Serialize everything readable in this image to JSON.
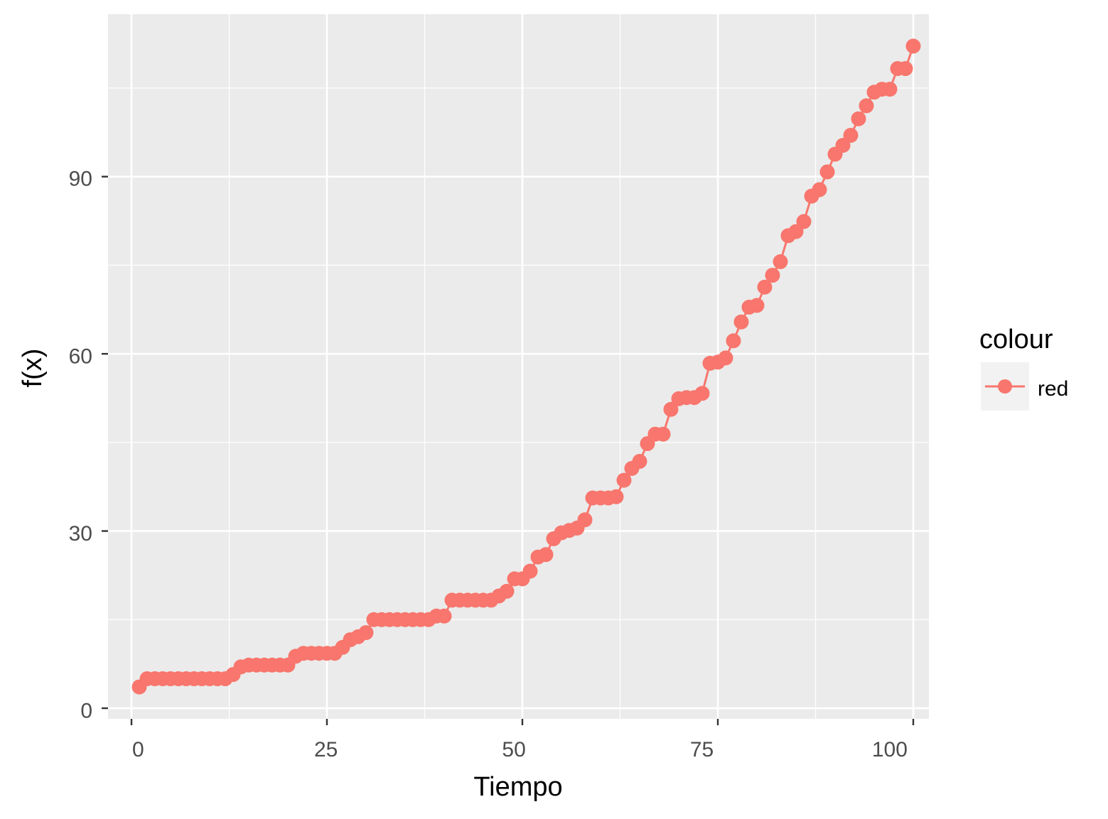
{
  "chart_data": {
    "type": "line",
    "xlabel": "Tiempo",
    "ylabel": "f(x)",
    "xlim": [
      -3,
      102
    ],
    "ylim": [
      -1.8,
      117.5
    ],
    "x_ticks": [
      0,
      25,
      50,
      75,
      100
    ],
    "y_ticks": [
      0,
      30,
      60,
      90
    ],
    "x_tick_labels": [
      "0",
      "25",
      "50",
      "75",
      "100"
    ],
    "y_tick_labels": [
      "0",
      "30",
      "60",
      "90"
    ],
    "grid": true,
    "legend": {
      "title": "colour",
      "position": "right",
      "entries": [
        "red"
      ]
    },
    "series": [
      {
        "name": "red",
        "color": "#F8766D",
        "x": [
          1,
          2,
          3,
          4,
          5,
          6,
          7,
          8,
          9,
          10,
          11,
          12,
          13,
          14,
          15,
          16,
          17,
          18,
          19,
          20,
          21,
          22,
          23,
          24,
          25,
          26,
          27,
          28,
          29,
          30,
          31,
          32,
          33,
          34,
          35,
          36,
          37,
          38,
          39,
          40,
          41,
          42,
          43,
          44,
          45,
          46,
          47,
          48,
          49,
          50,
          51,
          52,
          53,
          54,
          55,
          56,
          57,
          58,
          59,
          60,
          61,
          62,
          63,
          64,
          65,
          66,
          67,
          68,
          69,
          70,
          71,
          72,
          73,
          74,
          75,
          76,
          77,
          78,
          79,
          80,
          81,
          82,
          83,
          84,
          85,
          86,
          87,
          88,
          89,
          90,
          91,
          92,
          93,
          94,
          95,
          96,
          97,
          98,
          99,
          100
        ],
        "values": [
          3.6,
          5,
          5,
          5,
          5,
          5,
          5,
          5,
          5,
          5,
          5,
          5,
          5.7,
          7,
          7.3,
          7.3,
          7.3,
          7.3,
          7.3,
          7.3,
          8.8,
          9.3,
          9.3,
          9.3,
          9.3,
          9.3,
          10.3,
          11.6,
          12.1,
          12.8,
          15,
          15,
          15,
          15,
          15,
          15,
          15,
          15,
          15.6,
          15.6,
          18.3,
          18.3,
          18.3,
          18.3,
          18.3,
          18.3,
          19,
          19.8,
          21.9,
          21.9,
          23.2,
          25.6,
          26,
          28.7,
          29.7,
          30.1,
          30.5,
          31.9,
          35.6,
          35.6,
          35.6,
          35.8,
          38.6,
          40.6,
          41.8,
          44.8,
          46.4,
          46.4,
          50.6,
          52.4,
          52.6,
          52.6,
          53.3,
          58.4,
          58.6,
          59.3,
          62.2,
          65.4,
          67.9,
          68.2,
          71.3,
          73.3,
          75.6,
          80,
          80.7,
          82.4,
          86.7,
          87.8,
          90.8,
          93.8,
          95.3,
          97,
          99.8,
          102,
          104.3,
          104.8,
          104.8,
          108.3,
          108.3,
          112.1
        ]
      }
    ]
  }
}
